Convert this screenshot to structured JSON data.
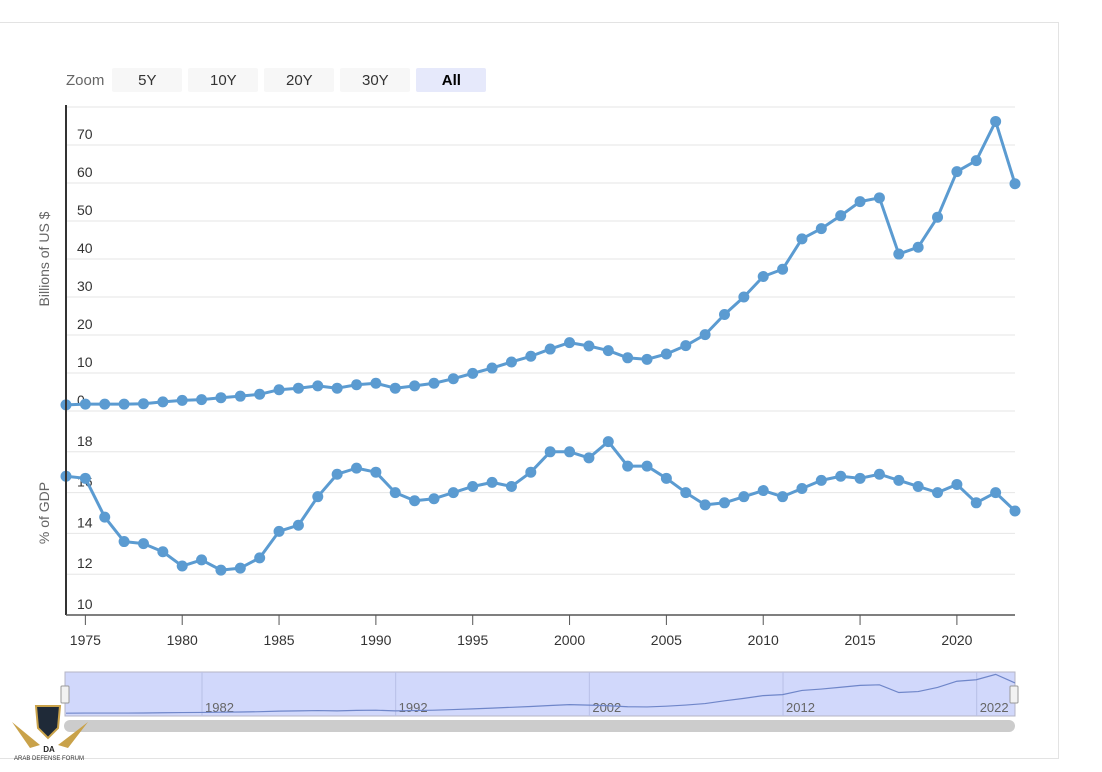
{
  "zoom": {
    "label": "Zoom",
    "buttons": [
      "5Y",
      "10Y",
      "20Y",
      "30Y",
      "All"
    ],
    "active": "All"
  },
  "navigator": {
    "labels": [
      "1982",
      "1992",
      "2002",
      "2012",
      "2022"
    ]
  },
  "watermark": {
    "text": "ARAB DEFENSE FORUM",
    "abbr": "DA"
  },
  "colors": {
    "series": "#5b9bd1",
    "navigator_fill": "#d1d8fb",
    "scrollbar": "#cccccc"
  },
  "chart_data": [
    {
      "type": "line",
      "ylabel": "Billions of US $",
      "ylim": [
        0,
        80
      ],
      "yticks": [
        0,
        10,
        20,
        30,
        40,
        50,
        60,
        70
      ],
      "x": [
        1974,
        1975,
        1976,
        1977,
        1978,
        1979,
        1980,
        1981,
        1982,
        1983,
        1984,
        1985,
        1986,
        1987,
        1988,
        1989,
        1990,
        1991,
        1992,
        1993,
        1994,
        1995,
        1996,
        1997,
        1998,
        1999,
        2000,
        2001,
        2002,
        2003,
        2004,
        2005,
        2006,
        2007,
        2008,
        2009,
        2010,
        2011,
        2012,
        2013,
        2014,
        2015,
        2016,
        2017,
        2018,
        2019,
        2020,
        2021,
        2022,
        2023
      ],
      "values": [
        1.6,
        1.8,
        1.8,
        1.8,
        1.9,
        2.4,
        2.8,
        3.0,
        3.5,
        3.9,
        4.4,
        5.6,
        6.0,
        6.6,
        6.0,
        6.9,
        7.3,
        6.0,
        6.6,
        7.3,
        8.5,
        9.9,
        11.3,
        12.9,
        14.4,
        16.3,
        18.0,
        17.1,
        15.9,
        14.0,
        13.6,
        15.0,
        17.2,
        20.1,
        25.4,
        30.0,
        35.4,
        37.3,
        45.3,
        48.0,
        51.4,
        55.1,
        56.1,
        41.3,
        43.1,
        51.0,
        63.0,
        65.9,
        76.2,
        59.8
      ],
      "grid": true
    },
    {
      "type": "line",
      "ylabel": "% of GDP",
      "ylim": [
        10,
        20
      ],
      "yticks": [
        10,
        12,
        14,
        16,
        18
      ],
      "x": [
        1974,
        1975,
        1976,
        1977,
        1978,
        1979,
        1980,
        1981,
        1982,
        1983,
        1984,
        1985,
        1986,
        1987,
        1988,
        1989,
        1990,
        1991,
        1992,
        1993,
        1994,
        1995,
        1996,
        1997,
        1998,
        1999,
        2000,
        2001,
        2002,
        2003,
        2004,
        2005,
        2006,
        2007,
        2008,
        2009,
        2010,
        2011,
        2012,
        2013,
        2014,
        2015,
        2016,
        2017,
        2018,
        2019,
        2020,
        2021,
        2022,
        2023
      ],
      "values": [
        16.8,
        16.7,
        14.8,
        13.6,
        13.5,
        13.1,
        12.4,
        12.7,
        12.2,
        12.3,
        12.8,
        14.1,
        14.4,
        15.8,
        16.9,
        17.2,
        17.0,
        16.0,
        15.6,
        15.7,
        16.0,
        16.3,
        16.5,
        16.3,
        17.0,
        18.0,
        18.0,
        17.7,
        18.5,
        17.3,
        17.3,
        16.7,
        16.0,
        15.4,
        15.5,
        15.8,
        16.1,
        15.8,
        16.2,
        16.6,
        16.8,
        16.7,
        16.9,
        16.6,
        16.3,
        16.0,
        16.4,
        15.5,
        16.0,
        15.1
      ],
      "grid": true
    }
  ],
  "xaxis": {
    "ticks": [
      "1975",
      "1980",
      "1985",
      "1990",
      "1995",
      "2000",
      "2005",
      "2010",
      "2015",
      "2020"
    ]
  }
}
